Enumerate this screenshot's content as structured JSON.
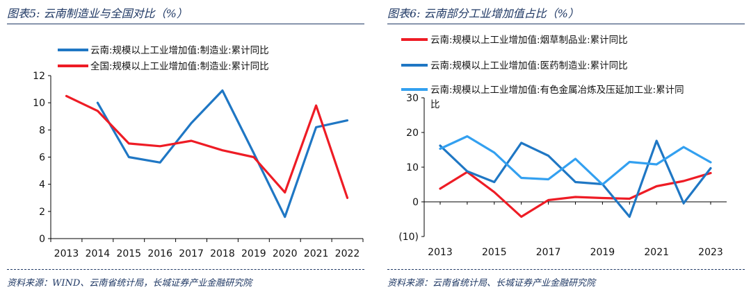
{
  "left": {
    "title": "图表5: 云南制造业与全国对比（%）",
    "source": "资料来源：WIND、云南省统计局，长城证券产业金融研究院"
  },
  "right": {
    "title": "图表6: 云南部分工业增加值占比（%）",
    "source": "资料来源：云南省统计局、长城证券产业金融研究院"
  },
  "colors": {
    "blue": "#1f77c4",
    "red": "#ee1c25",
    "lightblue": "#33a0f0",
    "navy": "#1f3864"
  },
  "chart_data": [
    {
      "type": "line",
      "title": "云南制造业与全国对比（%）",
      "categories": [
        "2013",
        "2014",
        "2015",
        "2016",
        "2017",
        "2018",
        "2019",
        "2020",
        "2021",
        "2022"
      ],
      "ylim": [
        0,
        12
      ],
      "yticks": [
        "0",
        "2",
        "4",
        "6",
        "8",
        "10",
        "12"
      ],
      "legend_position": "top-left",
      "series": [
        {
          "name": "云南:规模以上工业增加值:制造业:累计同比",
          "color": "#1f77c4",
          "values": [
            null,
            10.0,
            6.0,
            5.6,
            8.5,
            10.9,
            6.3,
            1.6,
            8.2,
            8.7
          ]
        },
        {
          "name": "全国:规模以上工业增加值:制造业:累计同比",
          "color": "#ee1c25",
          "values": [
            10.5,
            9.4,
            7.0,
            6.8,
            7.2,
            6.5,
            6.0,
            3.4,
            9.8,
            3.0
          ]
        }
      ]
    },
    {
      "type": "line",
      "title": "云南部分工业增加值占比（%）",
      "categories": [
        "2013",
        "2014",
        "2015",
        "2016",
        "2017",
        "2018",
        "2019",
        "2020",
        "2021",
        "2022",
        "2023"
      ],
      "xtick_labels": [
        "2013",
        "2015",
        "2017",
        "2019",
        "2021",
        "2023"
      ],
      "ylim": [
        -10,
        30
      ],
      "yticks": [
        "(10)",
        "0",
        "10",
        "20",
        "30"
      ],
      "legend_position": "top-left",
      "series": [
        {
          "name": "云南:规模以上工业增加值:烟草制品业:累计同比",
          "color": "#ee1c25",
          "values": [
            3.8,
            8.6,
            2.8,
            -4.3,
            0.5,
            1.4,
            1.1,
            0.9,
            4.5,
            6.0,
            8.3
          ]
        },
        {
          "name": "云南:规模以上工业增加值:医药制造业:累计同比",
          "color": "#1f77c4",
          "values": [
            16.2,
            8.8,
            5.7,
            17.0,
            13.3,
            5.7,
            5.1,
            -4.3,
            17.6,
            -0.4,
            9.7
          ]
        },
        {
          "name_line1": "云南:规模以上工业增加值:有色金属冶炼及压延加工业:累计同",
          "name_line2": "比",
          "color": "#33a0f0",
          "values": [
            15.3,
            18.9,
            14.2,
            6.9,
            6.5,
            12.4,
            5.0,
            11.5,
            10.8,
            15.8,
            11.4
          ]
        }
      ]
    }
  ]
}
